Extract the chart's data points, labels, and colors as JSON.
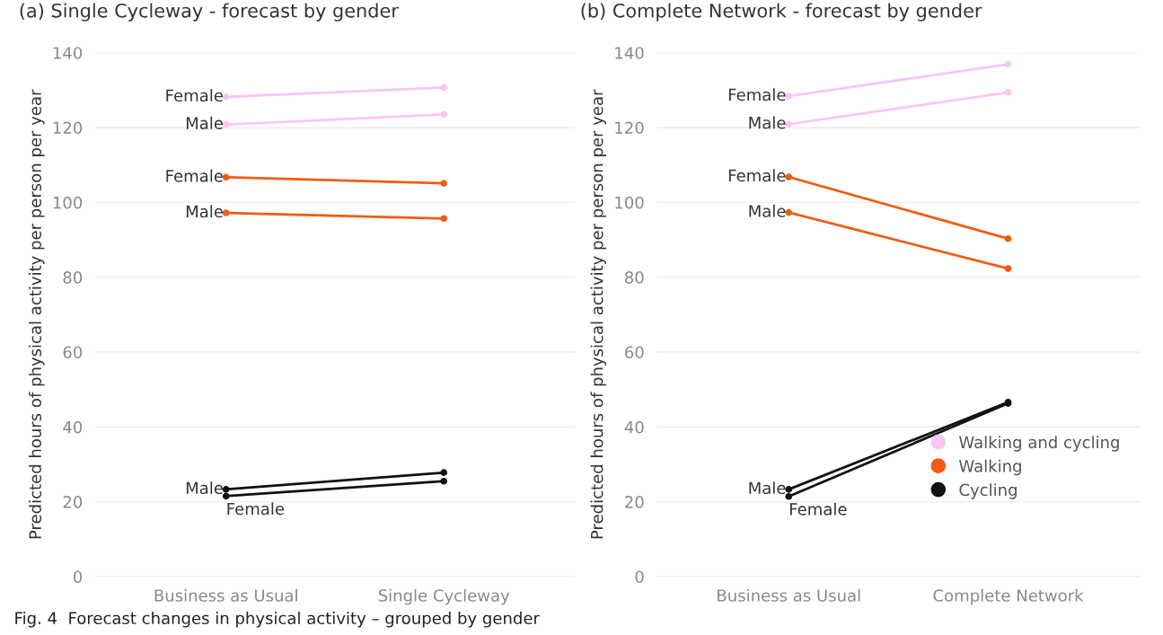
{
  "chart_data": [
    {
      "type": "line",
      "title": "(a) Single Cycleway - forecast by gender",
      "ylabel": "Predicted hours of physical activity per person per year",
      "categories": [
        "Business as Usual",
        "Single Cycleway"
      ],
      "ylim": [
        0,
        140
      ],
      "yticks": [
        0,
        20,
        40,
        60,
        80,
        100,
        120,
        140
      ],
      "grid": "y",
      "marker": "circle",
      "legend": false,
      "series": [
        {
          "color": "#f9c6f4",
          "values": [
            128.2,
            130.7
          ]
        },
        {
          "color": "#f9c6f4",
          "values": [
            120.8,
            123.5
          ]
        },
        {
          "color": "#f25c12",
          "values": [
            106.7,
            105.1
          ]
        },
        {
          "color": "#f25c12",
          "values": [
            97.2,
            95.7
          ]
        },
        {
          "color": "#111111",
          "values": [
            21.5,
            25.5
          ]
        },
        {
          "color": "#111111",
          "values": [
            23.3,
            27.8
          ]
        }
      ],
      "annotations": [
        {
          "text": "Female",
          "x": "Business as Usual",
          "y": 128.2
        },
        {
          "text": "Male",
          "x": "Business as Usual",
          "y": 120.8
        },
        {
          "text": "Female",
          "x": "Business as Usual",
          "y": 106.7
        },
        {
          "text": "Male",
          "x": "Business as Usual",
          "y": 97.2
        },
        {
          "text": "Male",
          "x": "Business as Usual",
          "y": 23.3
        },
        {
          "text": "Female",
          "x": "Business as Usual",
          "y": 21.5
        },
        "Fig. 4  Forecast changes in physical activity – grouped by gender"
      ]
    },
    {
      "type": "line",
      "title": "(b) Complete Network - forecast by gender",
      "ylabel": "Predicted hours of physical activity per person per year",
      "categories": [
        "Business as Usual",
        "Complete Network"
      ],
      "ylim": [
        0,
        140
      ],
      "yticks": [
        0,
        20,
        40,
        60,
        80,
        100,
        120,
        140
      ],
      "grid": "y",
      "marker": "circle",
      "legend": "bottom right",
      "series": [
        {
          "name": "Walking and cycling",
          "color": "#f9c6f4",
          "values": [
            128.4,
            136.9
          ]
        },
        {
          "color": "#f9c6f4",
          "values": [
            120.9,
            129.4
          ]
        },
        {
          "name": "Walking",
          "color": "#f25c12",
          "values": [
            106.8,
            90.3
          ]
        },
        {
          "color": "#f25c12",
          "values": [
            97.3,
            82.3
          ]
        },
        {
          "name": "Cycling",
          "color": "#111111",
          "values": [
            21.4,
            46.3
          ]
        },
        {
          "color": "#111111",
          "values": [
            23.3,
            46.6
          ]
        }
      ],
      "annotations": [
        {
          "text": "Female",
          "x": "Business as Usual",
          "y": 128.4
        },
        {
          "text": "Male",
          "x": "Business as Usual",
          "y": 120.9
        },
        {
          "text": "Female",
          "x": "Business as Usual",
          "y": 106.8
        },
        {
          "text": "Male",
          "x": "Business as Usual",
          "y": 97.3
        },
        {
          "text": "Male",
          "x": "Business as Usual",
          "y": 23.3
        },
        {
          "text": "Female",
          "x": "Business as Usual",
          "y": 21.4
        }
      ]
    }
  ]
}
